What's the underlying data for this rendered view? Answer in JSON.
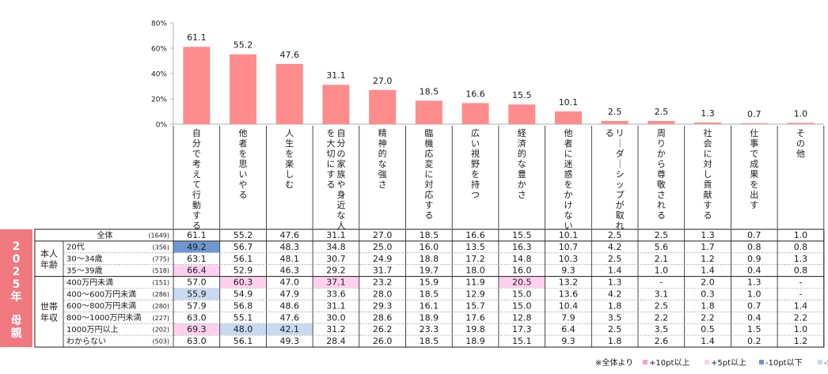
{
  "side_label": "2025年 母親",
  "chart_data": {
    "type": "bar",
    "categories": [
      "自分で考えて行動する",
      "他者を思いやる",
      "人生を楽しむ",
      "自分の家族や身近な人を大切にする",
      "精神的な強さ",
      "臨機応変に対応する",
      "広い視野を持つ",
      "経済的な豊かさ",
      "他者に迷惑をかけない",
      "リーダーシップが取れる",
      "周りから尊敬される",
      "社会に対し貢献する",
      "仕事で成果を出す",
      "その他"
    ],
    "values": [
      61.1,
      55.2,
      47.6,
      31.1,
      27.0,
      18.5,
      16.6,
      15.5,
      10.1,
      2.5,
      2.5,
      1.3,
      0.7,
      1.0
    ],
    "value_labels": [
      "61.1",
      "55.2",
      "47.6",
      "31.1",
      "27.0",
      "18.5",
      "16.6",
      "15.5",
      "10.1",
      "2.5",
      "2.5",
      "1.3",
      "0.7",
      "1.0"
    ],
    "y_ticks": [
      "0%",
      "20%",
      "40%",
      "60%",
      "80%"
    ],
    "ylim": [
      0,
      80
    ],
    "bar_color": "#ff8c8c"
  },
  "table": {
    "total_row": {
      "label": "全体",
      "n": "(1649)",
      "values": [
        "61.1",
        "55.2",
        "47.6",
        "31.1",
        "27.0",
        "18.5",
        "16.6",
        "15.5",
        "10.1",
        "2.5",
        "2.5",
        "1.3",
        "0.7",
        "1.0"
      ]
    },
    "groups": [
      {
        "label_lines": [
          "本人",
          "年齢"
        ],
        "rows": [
          {
            "label": "20代",
            "n": "(356)",
            "values": [
              "49.2",
              "56.7",
              "48.3",
              "34.8",
              "25.0",
              "16.0",
              "13.5",
              "16.3",
              "10.7",
              "4.2",
              "5.6",
              "1.7",
              "0.8",
              "0.8"
            ],
            "highlights": {
              "0": "minus10"
            }
          },
          {
            "label": "30～34歳",
            "n": "(775)",
            "values": [
              "63.1",
              "56.1",
              "48.1",
              "30.7",
              "24.9",
              "18.8",
              "17.2",
              "14.8",
              "10.3",
              "2.5",
              "2.1",
              "1.2",
              "0.9",
              "1.3"
            ],
            "highlights": {}
          },
          {
            "label": "35～39歳",
            "n": "(518)",
            "values": [
              "66.4",
              "52.9",
              "46.3",
              "29.2",
              "31.7",
              "19.7",
              "18.0",
              "16.0",
              "9.3",
              "1.4",
              "1.0",
              "1.4",
              "0.4",
              "0.8"
            ],
            "highlights": {
              "0": "plus5"
            }
          }
        ]
      },
      {
        "label_lines": [
          "世帯",
          "年収"
        ],
        "rows": [
          {
            "label": "400万円未満",
            "n": "(151)",
            "values": [
              "57.0",
              "60.3",
              "47.0",
              "37.1",
              "23.2",
              "15.9",
              "11.9",
              "20.5",
              "13.2",
              "1.3",
              "-",
              "2.0",
              "1.3",
              "-"
            ],
            "highlights": {
              "1": "plus5",
              "3": "plus5",
              "7": "plus5"
            }
          },
          {
            "label": "400～600万円未満",
            "n": "(286)",
            "values": [
              "55.9",
              "54.9",
              "47.9",
              "33.6",
              "28.0",
              "18.5",
              "12.9",
              "15.0",
              "13.6",
              "4.2",
              "3.1",
              "0.3",
              "1.0",
              "-"
            ],
            "highlights": {
              "0": "minus5"
            }
          },
          {
            "label": "600～800万円未満",
            "n": "(280)",
            "values": [
              "57.9",
              "56.8",
              "48.6",
              "31.1",
              "29.3",
              "16.1",
              "15.7",
              "15.0",
              "10.4",
              "1.8",
              "2.5",
              "1.8",
              "0.7",
              "1.4"
            ],
            "highlights": {}
          },
          {
            "label": "800～1000万円未満",
            "n": "(227)",
            "values": [
              "63.0",
              "55.1",
              "47.6",
              "30.0",
              "28.6",
              "18.9",
              "17.6",
              "12.8",
              "7.9",
              "3.5",
              "2.2",
              "2.2",
              "0.4",
              "2.2"
            ],
            "highlights": {}
          },
          {
            "label": "1000万円以上",
            "n": "(202)",
            "values": [
              "69.3",
              "48.0",
              "42.1",
              "31.2",
              "26.2",
              "23.3",
              "19.8",
              "17.3",
              "6.4",
              "2.5",
              "3.5",
              "0.5",
              "1.5",
              "1.0"
            ],
            "highlights": {
              "0": "plus5",
              "1": "minus5",
              "2": "minus5"
            }
          },
          {
            "label": "わからない",
            "n": "(503)",
            "values": [
              "63.0",
              "56.1",
              "49.3",
              "28.4",
              "26.0",
              "18.5",
              "18.9",
              "15.1",
              "9.3",
              "1.8",
              "2.6",
              "1.4",
              "0.2",
              "1.2"
            ],
            "highlights": {}
          }
        ]
      }
    ]
  },
  "legend": {
    "prefix": "※全体より",
    "items": [
      {
        "key": "plus10",
        "label": "+10pt以上",
        "color": "#ff9ec8"
      },
      {
        "key": "plus5",
        "label": "+5pt以上",
        "color": "#ffd0ee"
      },
      {
        "key": "minus10",
        "label": "-10pt以下",
        "color": "#6f98d0"
      },
      {
        "key": "minus5",
        "label": "-5pt以下",
        "color": "#c8daf2"
      }
    ]
  }
}
